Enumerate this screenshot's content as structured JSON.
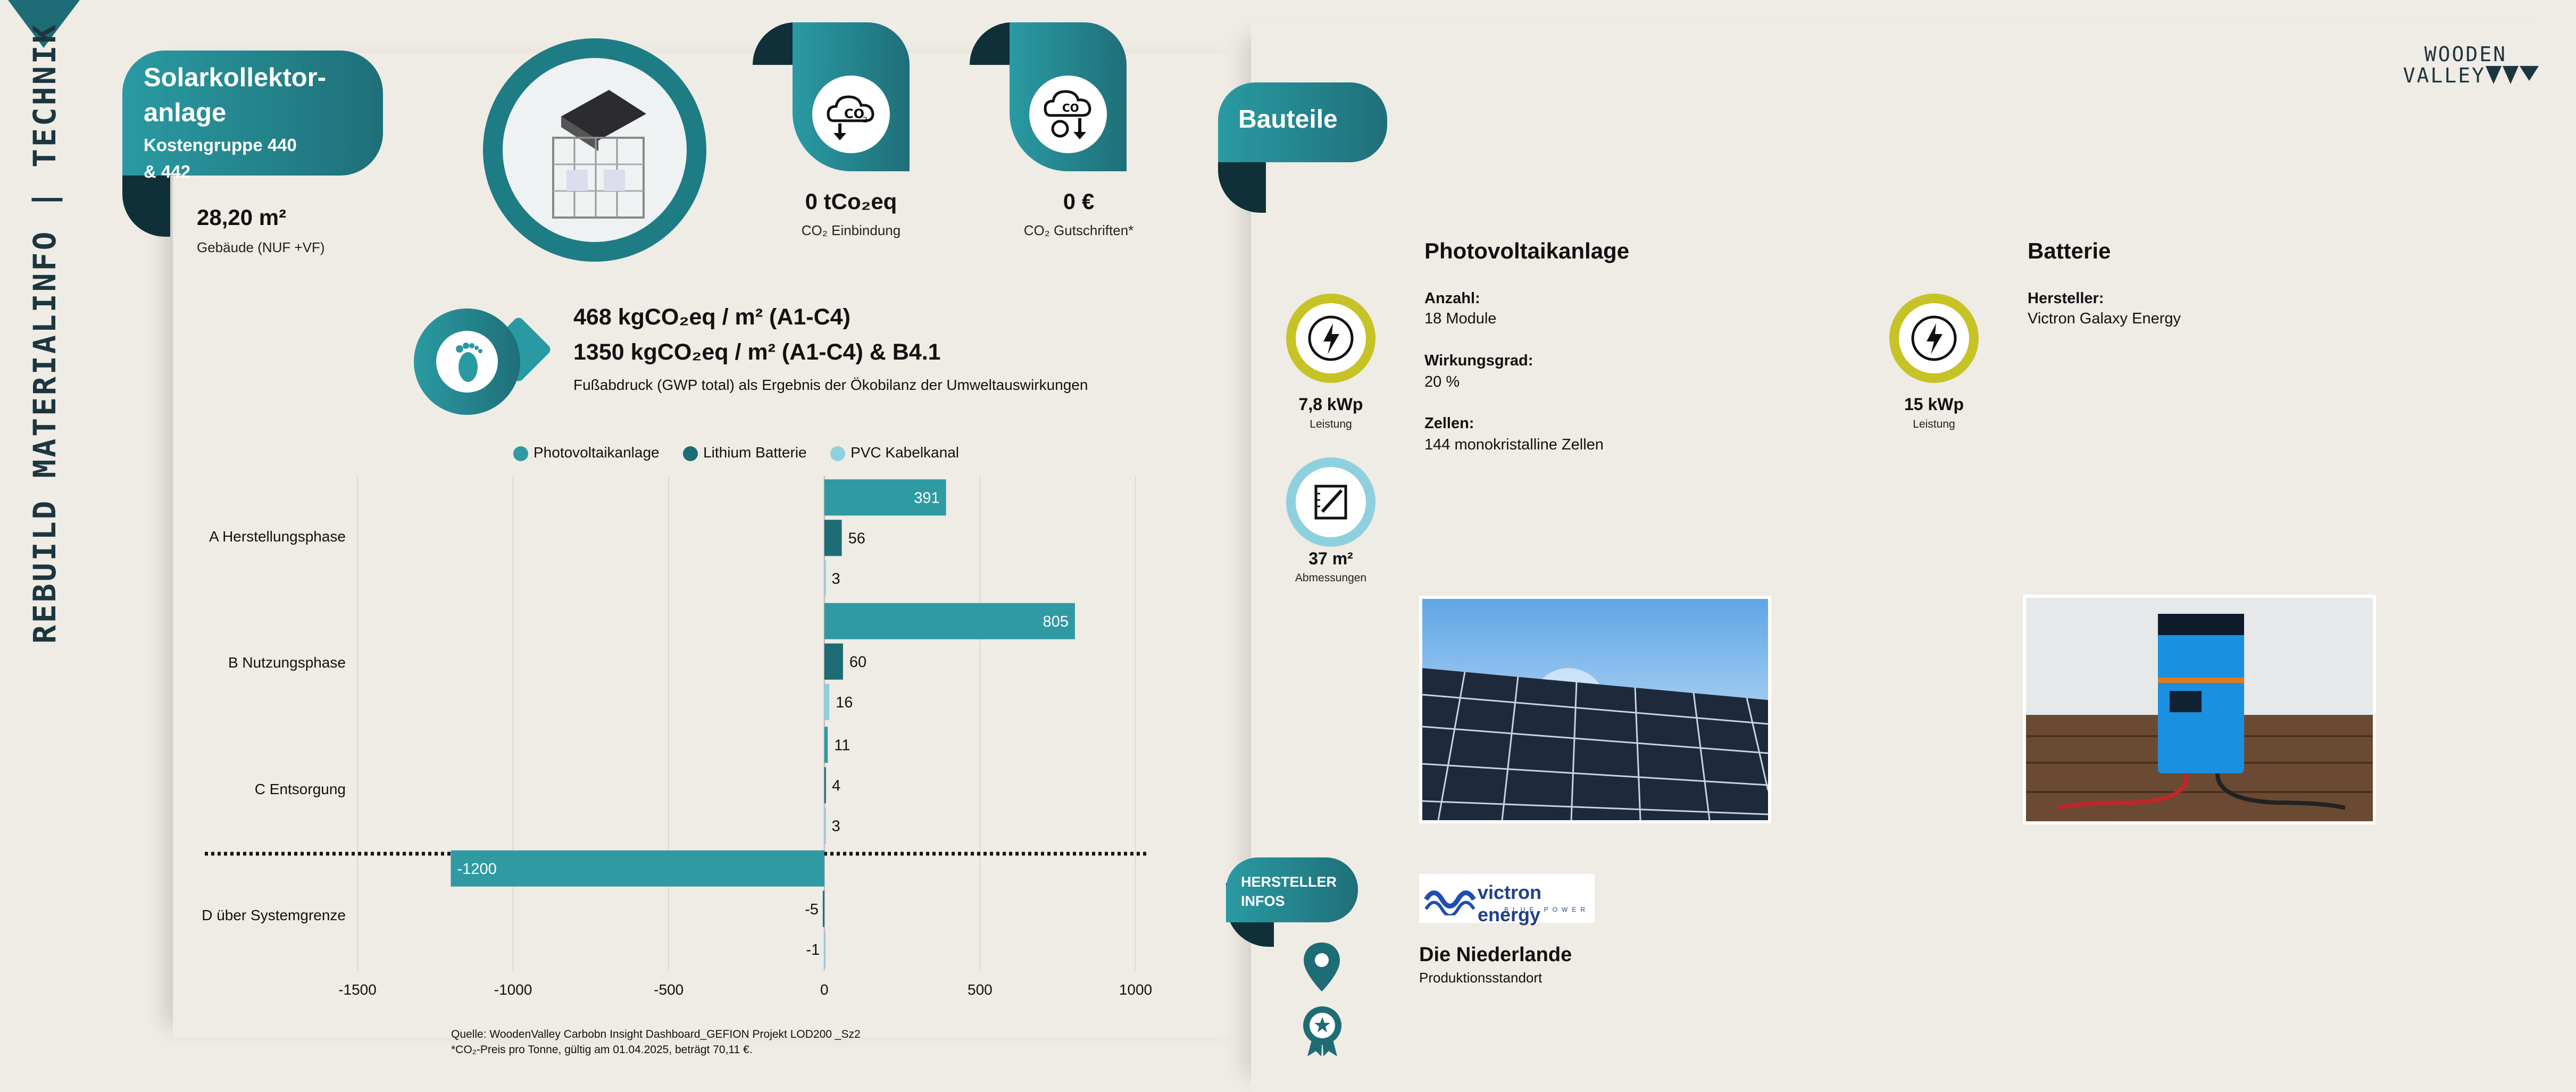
{
  "header": {
    "vertical_title": "REBUILD MATERIALINFO  |  TECHNIK",
    "logo_line1": "WOODEN",
    "logo_line2": "VALLEY"
  },
  "component": {
    "title_line1": "Solarkollektor-",
    "title_line2": "anlage",
    "group_line1": "Kostengruppe 440",
    "group_line2": "& 442",
    "area_value": "28,20 m²",
    "area_label": "Gebäude (NUF +VF)"
  },
  "stats": {
    "co2_binding_value": "0 tCo₂eq",
    "co2_binding_label": "CO₂ Einbindung",
    "co2_credit_value": "0 €",
    "co2_credit_label": "CO₂ Gutschriften*"
  },
  "footprint": {
    "line1": "468 kgCO₂eq / m² (A1-C4)",
    "line2": "1350 kgCO₂eq / m² (A1-C4) & B4.1",
    "caption": "Fußabdruck (GWP total) als Ergebnis der Ökobilanz der Umweltauswirkungen"
  },
  "chart_data": {
    "type": "bar",
    "orientation": "horizontal",
    "categories": [
      "A Herstellungsphase",
      "B Nutzungsphase",
      "C Entsorgung",
      "D über Systemgrenze"
    ],
    "series": [
      {
        "name": "Photovoltaikanlage",
        "color": "#2f9aa2",
        "values": [
          391,
          805,
          11,
          -1200
        ]
      },
      {
        "name": "Lithium Batterie",
        "color": "#1e6c75",
        "values": [
          56,
          60,
          4,
          -5
        ]
      },
      {
        "name": "PVC Kabelkanal",
        "color": "#8fd0de",
        "values": [
          3,
          16,
          3,
          -1
        ]
      }
    ],
    "xlim": [
      -1500,
      1000
    ],
    "xticks": [
      "-1500",
      "-1000",
      "-500",
      "0",
      "500",
      "1000"
    ],
    "grid": true,
    "legend": "top"
  },
  "sources": {
    "line1": "Quelle: WoodenValley Carbobn Insight Dashboard_GEFION Projekt LOD200 _Sz2",
    "line2": "*CO₂-Preis pro Tonne, gültig am 01.04.2025, beträgt 70,11 €."
  },
  "bauteile": {
    "tab_label": "Bauteile",
    "pv": {
      "heading": "Photovoltaikanlage",
      "anzahl_label": "Anzahl:",
      "anzahl_value": "18 Module",
      "wirkung_label": "Wirkungsgrad:",
      "wirkung_value": "20 %",
      "zellen_label": "Zellen:",
      "zellen_value": "144 monokristalline Zellen",
      "power_value": "7,8 kWp",
      "power_label": "Leistung",
      "dim_value": "37 m²",
      "dim_label": "Abmessungen"
    },
    "battery": {
      "heading": "Batterie",
      "hersteller_label": "Hersteller:",
      "hersteller_value": "Victron Galaxy Energy",
      "power_value": "15 kWp",
      "power_label": "Leistung"
    }
  },
  "manufacturer": {
    "tab_line1": "HERSTELLER",
    "tab_line2": "INFOS",
    "brand": "victron energy",
    "brand_sub": "BLUE POWER",
    "country": "Die Niederlande",
    "country_label": "Produktionsstandort"
  },
  "colors": {
    "teal": "#2a9aa2",
    "teal_dark": "#1e6c75",
    "teal_light": "#8fd0de",
    "lime": "#c6c326",
    "navy": "#0f3038"
  }
}
